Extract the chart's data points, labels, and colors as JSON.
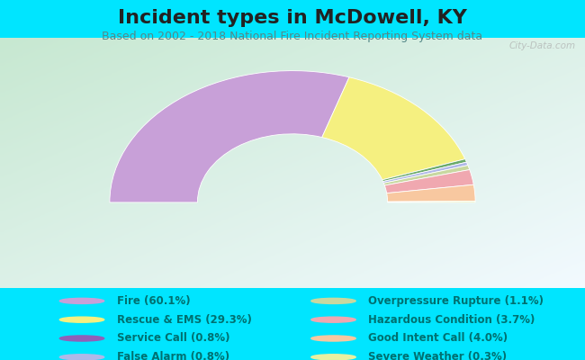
{
  "title": "Incident types in McDowell, KY",
  "subtitle": "Based on 2002 - 2018 National Fire Incident Reporting System data",
  "background_outer": "#00e5ff",
  "background_chart_tl": "#c8e8d0",
  "background_chart_br": "#f0f8ff",
  "categories": [
    "Fire",
    "Rescue & EMS",
    "Service Call",
    "False Alarm",
    "Overpressure Rupture",
    "Hazardous Condition",
    "Good Intent Call",
    "Severe Weather"
  ],
  "values": [
    60.1,
    29.3,
    0.8,
    0.8,
    1.1,
    3.7,
    4.0,
    0.3
  ],
  "colors": [
    "#c8a0d8",
    "#f5f080",
    "#6aaa6a",
    "#b0b8e8",
    "#c8d8a0",
    "#f0a8b0",
    "#f8c8a0",
    "#e8f0a0"
  ],
  "legend_labels": [
    "Fire (60.1%)",
    "Rescue & EMS (29.3%)",
    "Service Call (0.8%)",
    "False Alarm (0.8%)",
    "Overpressure Rupture (1.1%)",
    "Hazardous Condition (3.7%)",
    "Good Intent Call (4.0%)",
    "Severe Weather (0.3%)"
  ],
  "legend_colors": [
    "#c8a0d8",
    "#f5f080",
    "#9060b8",
    "#b0b8e8",
    "#c8d8a0",
    "#f0a8b0",
    "#f8c8a0",
    "#e8f0a0"
  ],
  "watermark": "City-Data.com",
  "title_fontsize": 16,
  "subtitle_fontsize": 9,
  "legend_fontsize": 8.5,
  "outer_r": 1.0,
  "inner_r": 0.52
}
